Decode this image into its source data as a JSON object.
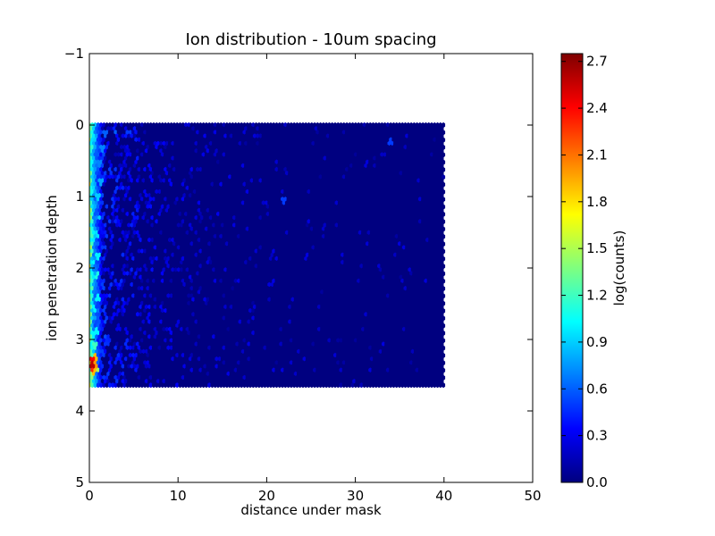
{
  "chart_data": {
    "type": "heatmap",
    "subtype": "hexbin",
    "title": "Ion distribution - 10um spacing",
    "xlabel": "distance under mask",
    "ylabel": "ion penetration depth",
    "xlim": [
      0,
      50
    ],
    "ylim": [
      -1,
      5
    ],
    "y_inverted": true,
    "x_ticks": [
      "0",
      "10",
      "20",
      "30",
      "40",
      "50"
    ],
    "y_ticks": [
      "−1",
      "0",
      "1",
      "2",
      "3",
      "4",
      "5"
    ],
    "grid": false,
    "colormap": "jet",
    "colorbar": {
      "label": "log(counts)",
      "range": [
        0,
        2.75
      ],
      "ticks": [
        "0.0",
        "0.3",
        "0.6",
        "0.9",
        "1.2",
        "1.5",
        "1.8",
        "2.1",
        "2.4",
        "2.7"
      ]
    },
    "data_extent": {
      "x": [
        0,
        40
      ],
      "y": [
        0,
        3.65
      ]
    },
    "background_value": 0.0,
    "hot_cells": [
      {
        "x": 0.3,
        "y": 3.35,
        "value": 2.6
      },
      {
        "x": 0.3,
        "y": 3.3,
        "value": 2.4
      },
      {
        "x": 0.3,
        "y": 3.4,
        "value": 2.3
      },
      {
        "x": 0.6,
        "y": 3.35,
        "value": 2.0
      },
      {
        "x": 0.5,
        "y": 3.45,
        "value": 1.9
      },
      {
        "x": 0.6,
        "y": 3.25,
        "value": 1.9
      },
      {
        "x": 0.3,
        "y": 3.5,
        "value": 1.4
      },
      {
        "x": 0.9,
        "y": 3.4,
        "value": 1.5
      },
      {
        "x": 0.7,
        "y": 3.1,
        "value": 1.2
      },
      {
        "x": 0.8,
        "y": 2.9,
        "value": 1.0
      },
      {
        "x": 0.7,
        "y": 2.6,
        "value": 1.0
      },
      {
        "x": 1.0,
        "y": 2.4,
        "value": 1.0
      },
      {
        "x": 0.9,
        "y": 2.1,
        "value": 1.1
      },
      {
        "x": 1.0,
        "y": 1.85,
        "value": 1.0
      },
      {
        "x": 0.9,
        "y": 1.55,
        "value": 0.95
      },
      {
        "x": 1.2,
        "y": 1.3,
        "value": 0.9
      },
      {
        "x": 1.0,
        "y": 1.0,
        "value": 0.9
      },
      {
        "x": 1.3,
        "y": 0.8,
        "value": 0.8
      },
      {
        "x": 1.1,
        "y": 0.55,
        "value": 0.7
      },
      {
        "x": 1.5,
        "y": 0.35,
        "value": 0.7
      },
      {
        "x": 1.8,
        "y": 0.15,
        "value": 0.6
      },
      {
        "x": 3.0,
        "y": 0.1,
        "value": 0.6
      },
      {
        "x": 4.5,
        "y": 0.1,
        "value": 0.5
      },
      {
        "x": 22.0,
        "y": 1.05,
        "value": 0.5
      },
      {
        "x": 34.0,
        "y": 0.25,
        "value": 0.5
      }
    ]
  }
}
